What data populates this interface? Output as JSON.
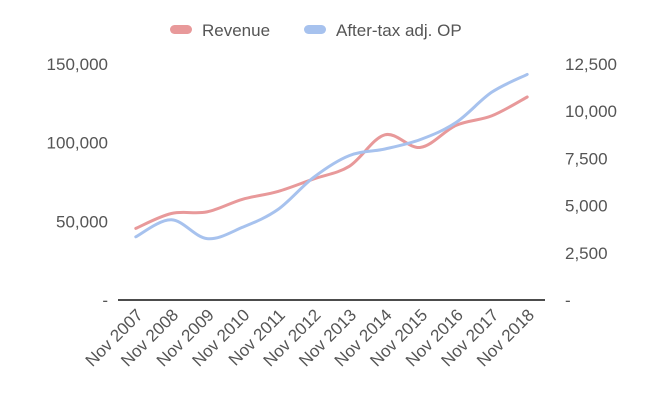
{
  "chart_data": {
    "type": "line",
    "title": "",
    "legend_position": "top",
    "x": [
      "Nov 2007",
      "Nov 2008",
      "Nov 2009",
      "Nov 2010",
      "Nov 2011",
      "Nov 2012",
      "Nov 2013",
      "Nov 2014",
      "Nov 2015",
      "Nov 2016",
      "Nov 2017",
      "Nov 2018"
    ],
    "series": [
      {
        "name": "Revenue",
        "axis": "left",
        "color": "#e8999a",
        "values": [
          45500,
          55000,
          56000,
          64000,
          69000,
          77000,
          85000,
          105000,
          97000,
          111000,
          117000,
          129000
        ]
      },
      {
        "name": "After-tax adj. OP",
        "axis": "right",
        "color": "#a7c2ee",
        "values": [
          3350,
          4250,
          3250,
          3850,
          4800,
          6500,
          7650,
          8000,
          8500,
          9400,
          11000,
          11950
        ]
      }
    ],
    "y_left": {
      "ylim": [
        0,
        150000
      ],
      "ticks": [
        "-",
        "50,000",
        "100,000",
        "150,000"
      ],
      "tick_values": [
        0,
        50000,
        100000,
        150000
      ]
    },
    "y_right": {
      "ylim": [
        0,
        12500
      ],
      "ticks": [
        "-",
        "2,500",
        "5,000",
        "7,500",
        "10,000",
        "12,500"
      ],
      "tick_values": [
        0,
        2500,
        5000,
        7500,
        10000,
        12500
      ]
    },
    "grid": {
      "horizontal": false,
      "vertical": false
    },
    "baseline_color": "#111111",
    "tick_color": "#555555"
  }
}
